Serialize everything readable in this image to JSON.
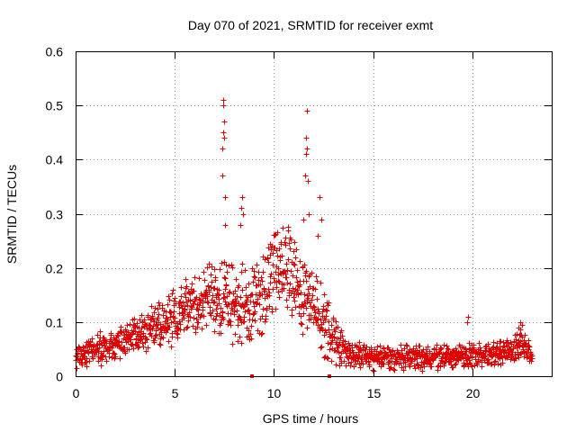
{
  "chart_data": {
    "type": "scatter",
    "title": "Day 070 of 2021, SRMTID for receiver exmt",
    "xlabel": "GPS time / hours",
    "ylabel": "SRMTID / TECUs",
    "xlim": [
      0,
      24
    ],
    "ylim": [
      0,
      0.6
    ],
    "xticks": [
      0,
      5,
      10,
      15,
      20
    ],
    "yticks": [
      0,
      0.1,
      0.2,
      0.3,
      0.4,
      0.5,
      0.6
    ],
    "xtick_labels": [
      "0",
      "5",
      "10",
      "15",
      "20"
    ],
    "ytick_labels": [
      "0",
      "0.1",
      "0.2",
      "0.3",
      "0.4",
      "0.5",
      "0.6"
    ],
    "grid": true,
    "marker": "+",
    "color": "#e00000",
    "x_axis_markers": [
      8.9,
      12.8
    ],
    "envelope": {
      "x": [
        0,
        1,
        2,
        3,
        4,
        5,
        5.5,
        6,
        6.5,
        7,
        7.5,
        8,
        8.5,
        9,
        9.5,
        10,
        10.5,
        11,
        11.5,
        12,
        12.5,
        13,
        13.5,
        14,
        15,
        16,
        17,
        18,
        19,
        20,
        21,
        22,
        22.5,
        23
      ],
      "center": [
        0.04,
        0.05,
        0.06,
        0.08,
        0.09,
        0.11,
        0.12,
        0.13,
        0.14,
        0.15,
        0.14,
        0.13,
        0.13,
        0.14,
        0.16,
        0.19,
        0.2,
        0.18,
        0.16,
        0.13,
        0.1,
        0.07,
        0.05,
        0.04,
        0.035,
        0.035,
        0.035,
        0.035,
        0.035,
        0.04,
        0.04,
        0.05,
        0.065,
        0.04
      ],
      "spread": [
        0.02,
        0.025,
        0.025,
        0.03,
        0.035,
        0.04,
        0.045,
        0.05,
        0.05,
        0.055,
        0.06,
        0.06,
        0.06,
        0.065,
        0.07,
        0.07,
        0.07,
        0.07,
        0.065,
        0.06,
        0.05,
        0.04,
        0.025,
        0.02,
        0.018,
        0.018,
        0.018,
        0.018,
        0.018,
        0.018,
        0.018,
        0.02,
        0.025,
        0.015
      ]
    },
    "peak_series": [
      {
        "name": "spike near 7.4 h",
        "x": [
          7.38,
          7.4,
          7.42,
          7.44,
          7.46,
          7.48,
          7.5,
          7.52,
          7.55
        ],
        "y": [
          0.37,
          0.42,
          0.45,
          0.5,
          0.51,
          0.47,
          0.44,
          0.33,
          0.28
        ]
      },
      {
        "name": "spike near 11.5 h",
        "x": [
          11.5,
          11.55,
          11.6,
          11.62,
          11.65,
          11.68,
          11.7,
          11.75
        ],
        "y": [
          0.29,
          0.37,
          0.41,
          0.44,
          0.49,
          0.42,
          0.36,
          0.3
        ]
      },
      {
        "name": "spike near 8.4 h",
        "x": [
          8.3,
          8.35,
          8.4,
          8.45
        ],
        "y": [
          0.28,
          0.31,
          0.33,
          0.3
        ]
      },
      {
        "name": "spike near 12.3 h",
        "x": [
          12.2,
          12.3,
          12.4
        ],
        "y": [
          0.26,
          0.33,
          0.29
        ]
      },
      {
        "name": "spike near 19.8 h",
        "x": [
          19.75,
          19.8
        ],
        "y": [
          0.1,
          0.11
        ]
      },
      {
        "name": "spike near 22.4 h",
        "x": [
          22.3,
          22.4,
          22.5
        ],
        "y": [
          0.09,
          0.1,
          0.095
        ]
      }
    ]
  }
}
